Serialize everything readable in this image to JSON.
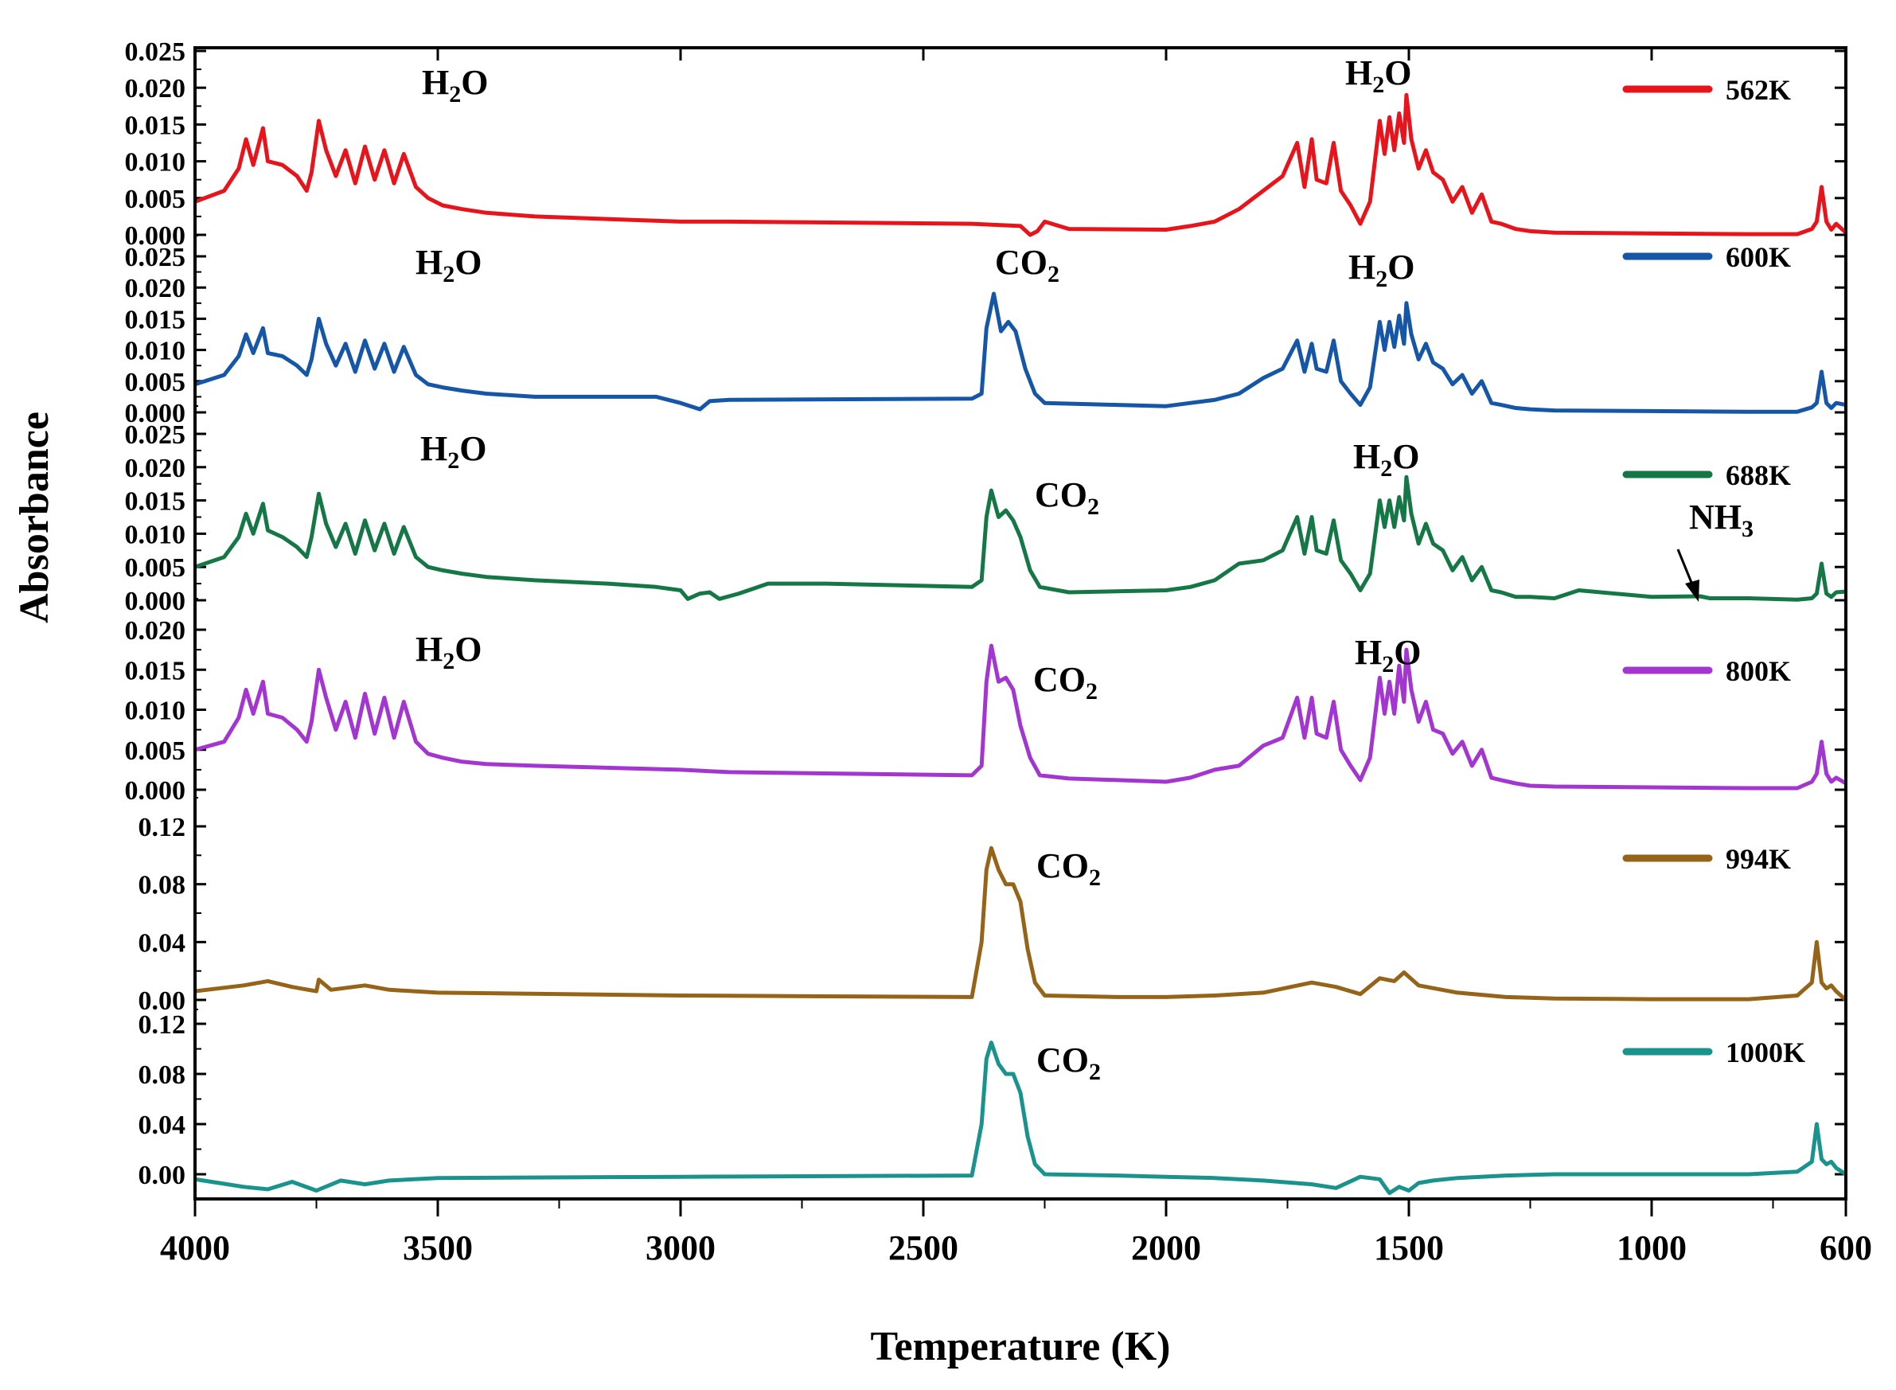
{
  "chart_data": {
    "type": "line",
    "title": "",
    "xlabel": "Temperature (K)",
    "ylabel": "Absorbance",
    "xlim": [
      4000,
      600
    ],
    "x_ticks": [
      "4000",
      "3500",
      "3000",
      "2500",
      "2000",
      "1500",
      "1000",
      "600"
    ],
    "panels": [
      {
        "name": "562K",
        "color": "#e8141b",
        "ylim": [
          0,
          0.025
        ],
        "yticks": [
          "0.000",
          "0.005",
          "0.010",
          "0.015",
          "0.020",
          "0.025"
        ],
        "x": [
          4000,
          3940,
          3910,
          3895,
          3880,
          3860,
          3850,
          3820,
          3790,
          3770,
          3760,
          3745,
          3730,
          3710,
          3690,
          3670,
          3650,
          3630,
          3610,
          3590,
          3570,
          3545,
          3520,
          3490,
          3450,
          3400,
          3300,
          3000,
          2900,
          2400,
          2300,
          2280,
          2265,
          2250,
          2200,
          2000,
          1950,
          1900,
          1850,
          1800,
          1760,
          1730,
          1715,
          1700,
          1690,
          1670,
          1655,
          1640,
          1620,
          1600,
          1580,
          1560,
          1550,
          1540,
          1530,
          1520,
          1510,
          1505,
          1495,
          1480,
          1465,
          1450,
          1430,
          1410,
          1390,
          1370,
          1350,
          1330,
          1310,
          1280,
          1250,
          1200,
          1000,
          800,
          700,
          670,
          660,
          650,
          640,
          630,
          620,
          600
        ],
        "values": [
          0.0045,
          0.006,
          0.009,
          0.013,
          0.0095,
          0.0145,
          0.01,
          0.0095,
          0.008,
          0.006,
          0.0085,
          0.0155,
          0.0115,
          0.008,
          0.0115,
          0.007,
          0.012,
          0.0075,
          0.0115,
          0.007,
          0.011,
          0.0065,
          0.005,
          0.004,
          0.0035,
          0.003,
          0.0025,
          0.0018,
          0.0018,
          0.0015,
          0.0012,
          0.0,
          0.0005,
          0.0018,
          0.0008,
          0.0007,
          0.0012,
          0.0018,
          0.0035,
          0.006,
          0.008,
          0.0125,
          0.0065,
          0.013,
          0.0075,
          0.007,
          0.0125,
          0.006,
          0.004,
          0.0015,
          0.0045,
          0.0155,
          0.011,
          0.016,
          0.0115,
          0.0165,
          0.0125,
          0.019,
          0.013,
          0.009,
          0.0115,
          0.0085,
          0.0075,
          0.0045,
          0.0065,
          0.003,
          0.0055,
          0.0018,
          0.0015,
          0.0008,
          0.0005,
          0.0003,
          0.0002,
          0.0001,
          0.0001,
          0.0008,
          0.0018,
          0.0065,
          0.0018,
          0.0007,
          0.0015,
          0.0003
        ]
      },
      {
        "name": "600K",
        "color": "#1656a7",
        "ylim": [
          0,
          0.025
        ],
        "yticks": [
          "0.000",
          "0.005",
          "0.010",
          "0.015",
          "0.020",
          "0.025"
        ],
        "x": [
          4000,
          3940,
          3910,
          3895,
          3880,
          3860,
          3850,
          3820,
          3790,
          3770,
          3760,
          3745,
          3730,
          3710,
          3690,
          3670,
          3650,
          3630,
          3610,
          3590,
          3570,
          3545,
          3520,
          3490,
          3450,
          3400,
          3300,
          3050,
          3000,
          2960,
          2940,
          2900,
          2400,
          2380,
          2370,
          2355,
          2340,
          2325,
          2310,
          2290,
          2270,
          2250,
          2100,
          2000,
          1950,
          1900,
          1850,
          1800,
          1760,
          1730,
          1715,
          1700,
          1690,
          1670,
          1655,
          1640,
          1620,
          1600,
          1580,
          1560,
          1550,
          1540,
          1530,
          1520,
          1510,
          1505,
          1495,
          1480,
          1465,
          1450,
          1430,
          1410,
          1390,
          1370,
          1350,
          1330,
          1310,
          1280,
          1250,
          1200,
          1000,
          800,
          700,
          670,
          660,
          650,
          640,
          630,
          620,
          600
        ],
        "values": [
          0.0045,
          0.006,
          0.009,
          0.0125,
          0.0095,
          0.0135,
          0.0095,
          0.009,
          0.0075,
          0.006,
          0.0085,
          0.015,
          0.011,
          0.0075,
          0.011,
          0.0065,
          0.0115,
          0.007,
          0.011,
          0.0065,
          0.0105,
          0.006,
          0.0045,
          0.004,
          0.0035,
          0.003,
          0.0025,
          0.0025,
          0.0015,
          0.0005,
          0.0018,
          0.002,
          0.0022,
          0.003,
          0.0135,
          0.019,
          0.013,
          0.0145,
          0.013,
          0.007,
          0.003,
          0.0015,
          0.0012,
          0.001,
          0.0015,
          0.002,
          0.003,
          0.0055,
          0.007,
          0.0115,
          0.0065,
          0.011,
          0.007,
          0.0065,
          0.0115,
          0.005,
          0.003,
          0.0012,
          0.004,
          0.0145,
          0.01,
          0.0145,
          0.0105,
          0.0155,
          0.011,
          0.0175,
          0.0125,
          0.0085,
          0.011,
          0.008,
          0.007,
          0.0045,
          0.006,
          0.003,
          0.005,
          0.0015,
          0.0012,
          0.0007,
          0.0005,
          0.0003,
          0.0002,
          0.0001,
          0.0001,
          0.0008,
          0.0015,
          0.0065,
          0.0015,
          0.0007,
          0.0015,
          0.0012
        ]
      },
      {
        "name": "688K",
        "color": "#157745",
        "ylim": [
          0,
          0.025
        ],
        "yticks": [
          "0.000",
          "0.005",
          "0.010",
          "0.015",
          "0.020",
          "0.025"
        ],
        "x": [
          4000,
          3940,
          3910,
          3895,
          3880,
          3860,
          3850,
          3820,
          3790,
          3770,
          3760,
          3745,
          3730,
          3710,
          3690,
          3670,
          3650,
          3630,
          3610,
          3590,
          3570,
          3545,
          3520,
          3490,
          3450,
          3400,
          3300,
          3150,
          3050,
          3000,
          2985,
          2960,
          2940,
          2920,
          2880,
          2820,
          2700,
          2400,
          2380,
          2370,
          2360,
          2345,
          2330,
          2315,
          2300,
          2280,
          2260,
          2200,
          2000,
          1950,
          1900,
          1850,
          1800,
          1760,
          1730,
          1715,
          1700,
          1690,
          1670,
          1655,
          1640,
          1620,
          1600,
          1580,
          1560,
          1550,
          1540,
          1530,
          1520,
          1510,
          1505,
          1495,
          1480,
          1465,
          1450,
          1430,
          1410,
          1390,
          1370,
          1350,
          1330,
          1310,
          1280,
          1250,
          1200,
          1150,
          1000,
          900,
          880,
          800,
          700,
          670,
          660,
          650,
          640,
          630,
          620,
          600
        ],
        "values": [
          0.005,
          0.0065,
          0.0095,
          0.013,
          0.01,
          0.0145,
          0.0105,
          0.0095,
          0.008,
          0.0065,
          0.0095,
          0.016,
          0.0115,
          0.008,
          0.0115,
          0.007,
          0.012,
          0.0075,
          0.0115,
          0.007,
          0.011,
          0.0065,
          0.005,
          0.0045,
          0.004,
          0.0035,
          0.003,
          0.0025,
          0.002,
          0.0015,
          0.0002,
          0.001,
          0.0012,
          0.0002,
          0.001,
          0.0025,
          0.0025,
          0.002,
          0.003,
          0.0125,
          0.0165,
          0.0125,
          0.0135,
          0.012,
          0.0095,
          0.0045,
          0.002,
          0.0012,
          0.0015,
          0.002,
          0.003,
          0.0055,
          0.006,
          0.0075,
          0.0125,
          0.007,
          0.0125,
          0.0075,
          0.007,
          0.012,
          0.006,
          0.004,
          0.0015,
          0.004,
          0.015,
          0.011,
          0.015,
          0.011,
          0.0155,
          0.012,
          0.0185,
          0.013,
          0.0085,
          0.0115,
          0.0085,
          0.0075,
          0.0045,
          0.0065,
          0.003,
          0.005,
          0.0015,
          0.0012,
          0.0005,
          0.0005,
          0.0003,
          0.0015,
          0.0005,
          0.0006,
          0.0003,
          0.0003,
          0.0001,
          0.0003,
          0.001,
          0.0055,
          0.001,
          0.0005,
          0.0012,
          0.0013
        ]
      },
      {
        "name": "800K",
        "color": "#a335d0",
        "ylim": [
          0,
          0.02
        ],
        "yticks": [
          "0.000",
          "0.005",
          "0.010",
          "0.015",
          "0.020"
        ],
        "x": [
          4000,
          3940,
          3910,
          3895,
          3880,
          3860,
          3850,
          3820,
          3790,
          3770,
          3760,
          3745,
          3730,
          3710,
          3690,
          3670,
          3650,
          3630,
          3610,
          3590,
          3570,
          3545,
          3520,
          3490,
          3450,
          3400,
          3300,
          3000,
          2900,
          2400,
          2380,
          2370,
          2360,
          2345,
          2330,
          2315,
          2300,
          2280,
          2260,
          2200,
          2100,
          2000,
          1950,
          1900,
          1850,
          1800,
          1760,
          1730,
          1715,
          1700,
          1690,
          1670,
          1655,
          1640,
          1620,
          1600,
          1580,
          1560,
          1550,
          1540,
          1530,
          1520,
          1510,
          1505,
          1495,
          1480,
          1465,
          1450,
          1430,
          1410,
          1390,
          1370,
          1350,
          1330,
          1310,
          1280,
          1250,
          1200,
          1000,
          800,
          700,
          670,
          660,
          650,
          640,
          630,
          620,
          600
        ],
        "values": [
          0.005,
          0.006,
          0.009,
          0.0125,
          0.0095,
          0.0135,
          0.0095,
          0.009,
          0.0075,
          0.006,
          0.0085,
          0.015,
          0.0115,
          0.0075,
          0.011,
          0.0065,
          0.012,
          0.007,
          0.0115,
          0.0065,
          0.011,
          0.006,
          0.0045,
          0.004,
          0.0035,
          0.0032,
          0.003,
          0.0025,
          0.0022,
          0.0018,
          0.003,
          0.0135,
          0.018,
          0.0135,
          0.014,
          0.0125,
          0.008,
          0.004,
          0.0018,
          0.0014,
          0.0012,
          0.001,
          0.0015,
          0.0025,
          0.003,
          0.0055,
          0.0065,
          0.0115,
          0.0065,
          0.0115,
          0.007,
          0.0065,
          0.011,
          0.005,
          0.003,
          0.0012,
          0.004,
          0.014,
          0.0095,
          0.0135,
          0.0095,
          0.0155,
          0.011,
          0.0175,
          0.0125,
          0.0085,
          0.011,
          0.0075,
          0.007,
          0.0045,
          0.006,
          0.003,
          0.005,
          0.0015,
          0.0012,
          0.0008,
          0.0005,
          0.0004,
          0.0003,
          0.0002,
          0.0002,
          0.001,
          0.002,
          0.006,
          0.002,
          0.001,
          0.0015,
          0.0008
        ]
      },
      {
        "name": "994K",
        "color": "#956418",
        "ylim": [
          0,
          0.12
        ],
        "yticks": [
          "0.00",
          "0.04",
          "0.08",
          "0.12"
        ],
        "x": [
          4000,
          3900,
          3850,
          3800,
          3750,
          3745,
          3720,
          3650,
          3600,
          3500,
          3000,
          2400,
          2380,
          2370,
          2360,
          2345,
          2330,
          2315,
          2300,
          2285,
          2270,
          2250,
          2100,
          2000,
          1900,
          1800,
          1700,
          1650,
          1600,
          1560,
          1530,
          1510,
          1480,
          1400,
          1300,
          1200,
          1000,
          800,
          700,
          670,
          660,
          650,
          640,
          630,
          620,
          600
        ],
        "values": [
          0.006,
          0.01,
          0.013,
          0.009,
          0.006,
          0.014,
          0.007,
          0.01,
          0.007,
          0.005,
          0.003,
          0.002,
          0.04,
          0.09,
          0.105,
          0.09,
          0.08,
          0.08,
          0.068,
          0.035,
          0.012,
          0.003,
          0.002,
          0.002,
          0.003,
          0.005,
          0.012,
          0.009,
          0.004,
          0.015,
          0.013,
          0.019,
          0.01,
          0.005,
          0.002,
          0.001,
          0.0005,
          0.0005,
          0.003,
          0.012,
          0.04,
          0.012,
          0.008,
          0.01,
          0.006,
          0.0
        ]
      },
      {
        "name": "1000K",
        "color": "#1a938c",
        "ylim": [
          -0.02,
          0.12
        ],
        "yticks": [
          "0.00",
          "0.04",
          "0.08",
          "0.12"
        ],
        "x": [
          4000,
          3950,
          3900,
          3850,
          3800,
          3750,
          3700,
          3650,
          3600,
          3500,
          3000,
          2400,
          2380,
          2370,
          2360,
          2345,
          2330,
          2315,
          2300,
          2285,
          2270,
          2250,
          2100,
          2000,
          1900,
          1800,
          1700,
          1650,
          1600,
          1560,
          1540,
          1520,
          1500,
          1480,
          1450,
          1400,
          1300,
          1200,
          1000,
          800,
          700,
          670,
          660,
          650,
          640,
          630,
          620,
          600
        ],
        "values": [
          -0.004,
          -0.007,
          -0.01,
          -0.012,
          -0.006,
          -0.013,
          -0.005,
          -0.008,
          -0.005,
          -0.003,
          -0.002,
          -0.001,
          0.04,
          0.092,
          0.105,
          0.088,
          0.08,
          0.08,
          0.065,
          0.03,
          0.008,
          0.0,
          -0.001,
          -0.002,
          -0.003,
          -0.005,
          -0.008,
          -0.011,
          -0.002,
          -0.004,
          -0.015,
          -0.01,
          -0.013,
          -0.007,
          -0.005,
          -0.003,
          -0.001,
          0.0,
          0.0,
          0.0,
          0.002,
          0.01,
          0.04,
          0.012,
          0.008,
          0.01,
          0.005,
          0.0
        ]
      }
    ],
    "annotations": [
      {
        "panel": 0,
        "text": "H",
        "sub": "2",
        "tail": "O",
        "x": 3500
      },
      {
        "panel": 0,
        "text": "H",
        "sub": "2",
        "tail": "O",
        "x": 1500
      },
      {
        "panel": 1,
        "text": "H",
        "sub": "2",
        "tail": "O",
        "x": 3500
      },
      {
        "panel": 1,
        "text": "CO",
        "sub": "2",
        "tail": "",
        "x": 2200
      },
      {
        "panel": 1,
        "text": "H",
        "sub": "2",
        "tail": "O",
        "x": 1500
      },
      {
        "panel": 2,
        "text": "H",
        "sub": "2",
        "tail": "O",
        "x": 3500
      },
      {
        "panel": 2,
        "text": "CO",
        "sub": "2",
        "tail": "",
        "x": 2200
      },
      {
        "panel": 2,
        "text": "H",
        "sub": "2",
        "tail": "O",
        "x": 1500
      },
      {
        "panel": 2,
        "text": "NH",
        "sub": "3",
        "tail": "",
        "x": 900
      },
      {
        "panel": 3,
        "text": "H",
        "sub": "2",
        "tail": "O",
        "x": 3500
      },
      {
        "panel": 3,
        "text": "CO",
        "sub": "2",
        "tail": "",
        "x": 2200
      },
      {
        "panel": 3,
        "text": "H",
        "sub": "2",
        "tail": "O",
        "x": 1500
      },
      {
        "panel": 4,
        "text": "CO",
        "sub": "2",
        "tail": "",
        "x": 2200
      },
      {
        "panel": 5,
        "text": "CO",
        "sub": "2",
        "tail": "",
        "x": 2200
      }
    ]
  }
}
